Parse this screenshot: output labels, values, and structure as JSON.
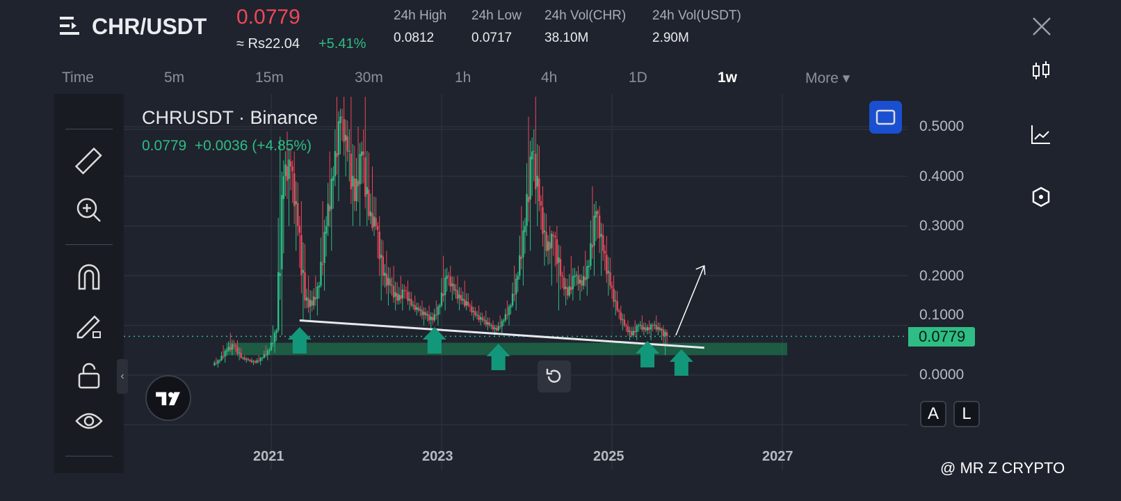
{
  "header": {
    "pair": "CHR/USDT",
    "price": "0.0779",
    "fiat": "≈ Rs22.04",
    "change_pct": "+5.41%",
    "stats": [
      {
        "label": "24h High",
        "value": "0.0812"
      },
      {
        "label": "24h Low",
        "value": "0.0717"
      },
      {
        "label": "24h Vol(CHR)",
        "value": "38.10M"
      },
      {
        "label": "24h Vol(USDT)",
        "value": "2.90M"
      }
    ]
  },
  "timeframes": [
    "Time",
    "5m",
    "15m",
    "30m",
    "1h",
    "4h",
    "1D",
    "1w",
    "More ▾"
  ],
  "active_timeframe": "1w",
  "legend": {
    "title": "CHRUSDT · Binance",
    "close": "0.0779",
    "change": "+0.0036 (+4.85%)"
  },
  "scale_buttons": {
    "auto": "A",
    "log": "L"
  },
  "watermark": "@ MR Z CRYPTO",
  "colors": {
    "up": "#2ebd85",
    "down": "#f0475a",
    "accent": "#1b4fd1",
    "zone": "#1e8a55"
  },
  "chart_data": {
    "type": "candlestick",
    "y_ticks": [
      "0.5000",
      "0.4000",
      "0.3000",
      "0.2000",
      "0.1000",
      "0.0000"
    ],
    "x_ticks": [
      "2021",
      "2023",
      "2025",
      "2027"
    ],
    "ylim": [
      -0.1,
      0.56
    ],
    "last_price": "0.0779",
    "candles": [
      [
        "2020-05",
        0.02,
        0.035,
        0.015,
        0.03
      ],
      [
        "2020-06",
        0.03,
        0.06,
        0.025,
        0.05
      ],
      [
        "2020-07",
        0.05,
        0.085,
        0.04,
        0.06
      ],
      [
        "2020-08",
        0.06,
        0.07,
        0.03,
        0.035
      ],
      [
        "2020-09",
        0.035,
        0.04,
        0.025,
        0.03
      ],
      [
        "2020-10",
        0.03,
        0.035,
        0.02,
        0.025
      ],
      [
        "2020-11",
        0.025,
        0.04,
        0.02,
        0.035
      ],
      [
        "2020-12",
        0.035,
        0.06,
        0.03,
        0.05
      ],
      [
        "2021-01",
        0.05,
        0.1,
        0.045,
        0.09
      ],
      [
        "2021-02",
        0.09,
        0.48,
        0.08,
        0.4
      ],
      [
        "2021-03",
        0.4,
        0.49,
        0.3,
        0.42
      ],
      [
        "2021-04",
        0.42,
        0.45,
        0.25,
        0.3
      ],
      [
        "2021-05",
        0.3,
        0.35,
        0.11,
        0.15
      ],
      [
        "2021-06",
        0.15,
        0.2,
        0.11,
        0.14
      ],
      [
        "2021-07",
        0.14,
        0.2,
        0.12,
        0.18
      ],
      [
        "2021-08",
        0.18,
        0.35,
        0.17,
        0.3
      ],
      [
        "2021-09",
        0.3,
        0.45,
        0.25,
        0.4
      ],
      [
        "2021-10",
        0.4,
        0.56,
        0.35,
        0.52
      ],
      [
        "2021-11",
        0.52,
        0.56,
        0.4,
        0.45
      ],
      [
        "2021-12",
        0.45,
        0.56,
        0.3,
        0.35
      ],
      [
        "2022-01",
        0.35,
        0.5,
        0.3,
        0.45
      ],
      [
        "2022-02",
        0.45,
        0.56,
        0.3,
        0.32
      ],
      [
        "2022-03",
        0.32,
        0.42,
        0.28,
        0.3
      ],
      [
        "2022-04",
        0.3,
        0.32,
        0.15,
        0.2
      ],
      [
        "2022-05",
        0.2,
        0.25,
        0.14,
        0.18
      ],
      [
        "2022-06",
        0.18,
        0.22,
        0.13,
        0.15
      ],
      [
        "2022-07",
        0.15,
        0.2,
        0.13,
        0.17
      ],
      [
        "2022-08",
        0.17,
        0.19,
        0.13,
        0.14
      ],
      [
        "2022-09",
        0.14,
        0.16,
        0.12,
        0.13
      ],
      [
        "2022-10",
        0.13,
        0.15,
        0.1,
        0.12
      ],
      [
        "2022-11",
        0.12,
        0.14,
        0.09,
        0.11
      ],
      [
        "2022-12",
        0.11,
        0.15,
        0.1,
        0.14
      ],
      [
        "2023-01",
        0.14,
        0.24,
        0.13,
        0.2
      ],
      [
        "2023-02",
        0.2,
        0.22,
        0.15,
        0.17
      ],
      [
        "2023-03",
        0.17,
        0.2,
        0.13,
        0.15
      ],
      [
        "2023-04",
        0.15,
        0.19,
        0.13,
        0.14
      ],
      [
        "2023-05",
        0.14,
        0.15,
        0.11,
        0.12
      ],
      [
        "2023-06",
        0.12,
        0.14,
        0.1,
        0.11
      ],
      [
        "2023-07",
        0.11,
        0.13,
        0.09,
        0.1
      ],
      [
        "2023-08",
        0.1,
        0.11,
        0.08,
        0.09
      ],
      [
        "2023-09",
        0.09,
        0.12,
        0.085,
        0.11
      ],
      [
        "2023-10",
        0.11,
        0.15,
        0.1,
        0.14
      ],
      [
        "2023-11",
        0.14,
        0.22,
        0.13,
        0.2
      ],
      [
        "2023-12",
        0.2,
        0.34,
        0.18,
        0.3
      ],
      [
        "2024-01",
        0.3,
        0.52,
        0.25,
        0.45
      ],
      [
        "2024-02",
        0.45,
        0.56,
        0.3,
        0.35
      ],
      [
        "2024-03",
        0.35,
        0.38,
        0.22,
        0.25
      ],
      [
        "2024-04",
        0.25,
        0.3,
        0.18,
        0.28
      ],
      [
        "2024-05",
        0.28,
        0.3,
        0.13,
        0.2
      ],
      [
        "2024-06",
        0.2,
        0.22,
        0.14,
        0.16
      ],
      [
        "2024-07",
        0.16,
        0.24,
        0.15,
        0.2
      ],
      [
        "2024-08",
        0.2,
        0.22,
        0.15,
        0.18
      ],
      [
        "2024-09",
        0.18,
        0.25,
        0.16,
        0.22
      ],
      [
        "2024-10",
        0.22,
        0.38,
        0.2,
        0.33
      ],
      [
        "2024-11",
        0.33,
        0.34,
        0.2,
        0.25
      ],
      [
        "2024-12",
        0.25,
        0.28,
        0.16,
        0.18
      ],
      [
        "2025-01",
        0.18,
        0.2,
        0.12,
        0.13
      ],
      [
        "2025-02",
        0.13,
        0.14,
        0.09,
        0.1
      ],
      [
        "2025-03",
        0.1,
        0.11,
        0.07,
        0.08
      ],
      [
        "2025-04",
        0.08,
        0.11,
        0.07,
        0.1
      ],
      [
        "2025-05",
        0.1,
        0.12,
        0.08,
        0.09
      ],
      [
        "2025-06",
        0.09,
        0.11,
        0.07,
        0.1
      ],
      [
        "2025-07",
        0.1,
        0.12,
        0.08,
        0.09
      ],
      [
        "2025-08",
        0.09,
        0.1,
        0.04,
        0.0779
      ]
    ],
    "support_zone": [
      0.04,
      0.065
    ],
    "trendline": [
      [
        "2021-05",
        0.11
      ],
      [
        "2026-02",
        0.055
      ]
    ],
    "projection_arrow": [
      [
        "2025-10",
        0.08
      ],
      [
        "2026-02",
        0.22
      ]
    ],
    "support_arrows": [
      "2021-05",
      "2022-12",
      "2023-09",
      "2025-06",
      "2025-10"
    ]
  }
}
